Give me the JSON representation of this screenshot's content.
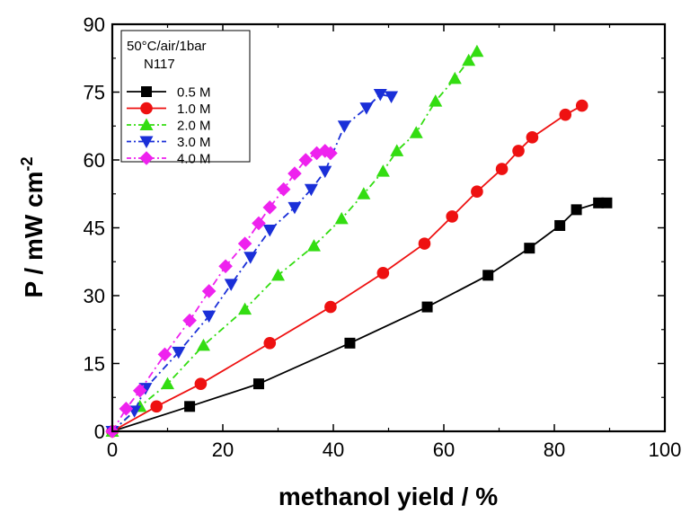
{
  "chart_data": {
    "type": "line",
    "xlabel": "methanol yield / %",
    "ylabel": "P / mW cm",
    "ylabel_superscript": "-2",
    "xlim": [
      0,
      100
    ],
    "ylim": [
      0,
      90
    ],
    "xticks": [
      0,
      20,
      40,
      60,
      80,
      100
    ],
    "yticks": [
      0,
      15,
      30,
      45,
      60,
      75,
      90
    ],
    "legend": {
      "placement": "top-left",
      "header_lines": [
        "50°C/air/1bar",
        "N117"
      ]
    },
    "series": [
      {
        "name": "0.5 M",
        "color": "#000000",
        "marker": "square",
        "line_style": "solid",
        "x": [
          0,
          14,
          26.5,
          43,
          57,
          68,
          75.5,
          81,
          84,
          88,
          89.5
        ],
        "y": [
          0,
          5.5,
          10.5,
          19.5,
          27.5,
          34.5,
          40.5,
          45.5,
          49,
          50.5,
          50.5
        ]
      },
      {
        "name": "1.0 M",
        "color": "#ee1111",
        "marker": "circle",
        "line_style": "solid",
        "x": [
          0,
          8,
          16,
          28.5,
          39.5,
          49,
          56.5,
          61.5,
          66,
          70.5,
          73.5,
          76,
          82,
          85
        ],
        "y": [
          0,
          5.5,
          10.5,
          19.5,
          27.5,
          35,
          41.5,
          47.5,
          53,
          58,
          62,
          65,
          70,
          72
        ]
      },
      {
        "name": "2.0 M",
        "color": "#33dd11",
        "marker": "triangle-up",
        "line_style": "dash-dot",
        "x": [
          0,
          5,
          10,
          16.5,
          24,
          30,
          36.5,
          41.5,
          45.5,
          49,
          51.5,
          55,
          58.5,
          62,
          64.5,
          66
        ],
        "y": [
          0,
          5.5,
          10.5,
          19,
          27,
          34.5,
          41,
          47,
          52.5,
          57.5,
          62,
          66,
          73,
          78,
          82,
          84
        ]
      },
      {
        "name": "3.0 M",
        "color": "#1a2fd8",
        "marker": "triangle-down",
        "line_style": "dash-dot",
        "x": [
          0,
          4,
          6,
          12,
          17.5,
          21.5,
          25,
          28.5,
          33,
          36,
          38.5,
          42,
          46,
          48.5,
          50.5
        ],
        "y": [
          0,
          4.5,
          9.5,
          17.5,
          25.5,
          32.5,
          38.5,
          44.5,
          49.5,
          53.5,
          57.5,
          67.5,
          71.5,
          74.5,
          74
        ]
      },
      {
        "name": "4.0 M",
        "color": "#ee22ee",
        "marker": "diamond",
        "line_style": "dash-dot",
        "x": [
          0,
          2.5,
          5,
          9.5,
          14,
          17.5,
          20.5,
          24,
          26.5,
          28.5,
          31,
          33,
          35,
          37,
          38.5,
          39.5
        ],
        "y": [
          0,
          5,
          9,
          17,
          24.5,
          31,
          36.5,
          41.5,
          46,
          49.5,
          53.5,
          57,
          60,
          61.5,
          62,
          61.5
        ]
      }
    ]
  }
}
